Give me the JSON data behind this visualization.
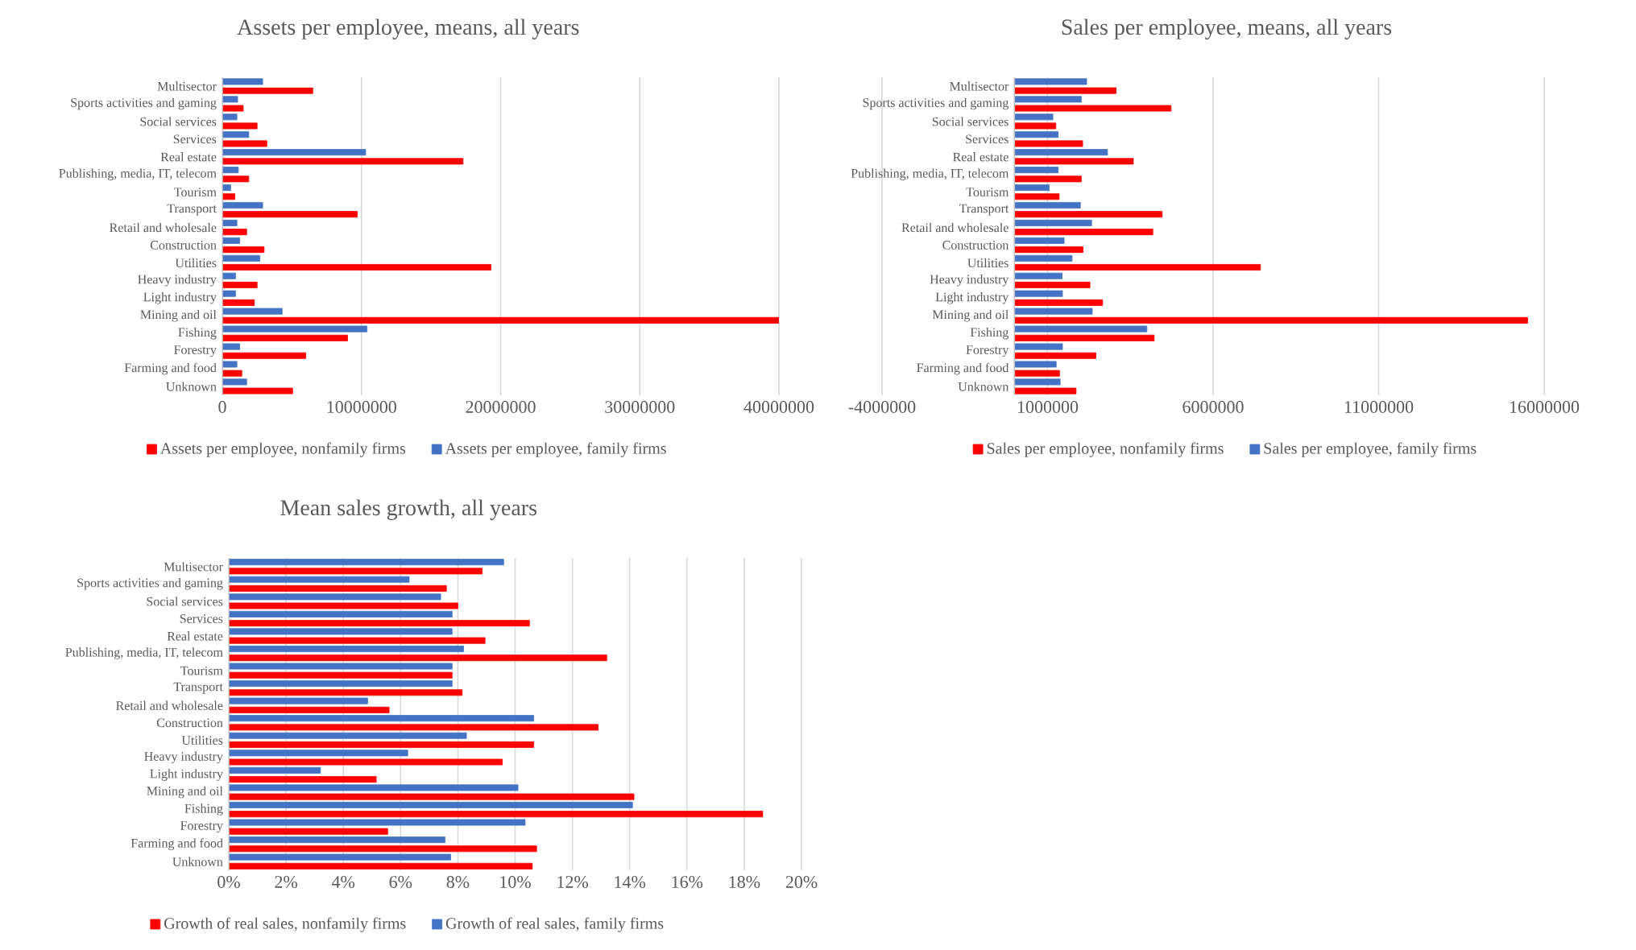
{
  "chart_data": [
    {
      "type": "bar",
      "orientation": "horizontal",
      "title": "Assets per employee, means, all years",
      "categories": [
        "Multisector",
        "Sports activities and gaming",
        "Social services",
        "Services",
        "Real estate",
        "Publishing, media, IT, telecom",
        "Tourism",
        "Transport",
        "Retail and wholesale",
        "Construction",
        "Utilities",
        "Heavy industry",
        "Light industry",
        "Mining and oil",
        "Fishing",
        "Forestry",
        "Farming and food",
        "Unknown"
      ],
      "series": [
        {
          "name": "Assets per employee, nonfamily firms",
          "color": "#ff0000",
          "values": [
            6500000,
            1500000,
            2500000,
            3200000,
            17300000,
            1900000,
            900000,
            9700000,
            1750000,
            3000000,
            19300000,
            2500000,
            2300000,
            40000000,
            9000000,
            6000000,
            1400000,
            5050000
          ]
        },
        {
          "name": "Assets per employee, family firms",
          "color": "#4472c4",
          "values": [
            2900000,
            1100000,
            1050000,
            1900000,
            10300000,
            1150000,
            600000,
            2900000,
            1050000,
            1250000,
            2700000,
            950000,
            950000,
            4300000,
            10400000,
            1250000,
            1050000,
            1750000
          ]
        }
      ],
      "xlim": [
        0,
        40000000
      ],
      "xticks": [
        0,
        10000000,
        20000000,
        30000000,
        40000000
      ],
      "grid": "x",
      "legend": "bottom"
    },
    {
      "type": "bar",
      "orientation": "horizontal",
      "title": "Sales per employee, means, all years",
      "categories": [
        "Multisector",
        "Sports activities and gaming",
        "Social services",
        "Services",
        "Real estate",
        "Publishing, media, IT, telecom",
        "Tourism",
        "Transport",
        "Retail and wholesale",
        "Construction",
        "Utilities",
        "Heavy industry",
        "Light industry",
        "Mining and oil",
        "Fishing",
        "Forestry",
        "Farming and food",
        "Unknown"
      ],
      "series": [
        {
          "name": "Sales per employee, nonfamily firms",
          "color": "#ff0000",
          "values": [
            3070000,
            4730000,
            1250000,
            2060000,
            3590000,
            2020000,
            1350000,
            4460000,
            4180000,
            2070000,
            7430000,
            2280000,
            2660000,
            15500000,
            4220000,
            2460000,
            1360000,
            1860000
          ]
        },
        {
          "name": "Sales per employee, family firms",
          "color": "#4472c4",
          "values": [
            2180000,
            2020000,
            1160000,
            1320000,
            2810000,
            1320000,
            1050000,
            1990000,
            2330000,
            1500000,
            1740000,
            1440000,
            1450000,
            2350000,
            4000000,
            1450000,
            1260000,
            1380000
          ]
        }
      ],
      "xlim": [
        -4000000,
        16000000
      ],
      "xticks": [
        -4000000,
        1000000,
        6000000,
        11000000,
        16000000
      ],
      "grid": "x",
      "legend": "bottom"
    },
    {
      "type": "bar",
      "orientation": "horizontal",
      "title": "Mean sales growth, all years",
      "categories": [
        "Multisector",
        "Sports activities and gaming",
        "Social services",
        "Services",
        "Real estate",
        "Publishing, media, IT, telecom",
        "Tourism",
        "Transport",
        "Retail and wholesale",
        "Construction",
        "Utilities",
        "Heavy industry",
        "Light industry",
        "Mining and oil",
        "Fishing",
        "Forestry",
        "Farming and food",
        "Unknown"
      ],
      "series": [
        {
          "name": "Growth of real sales, nonfamily firms",
          "color": "#ff0000",
          "values": [
            8.85,
            7.6,
            8.0,
            10.5,
            8.95,
            13.2,
            7.8,
            8.15,
            5.6,
            12.9,
            10.65,
            9.55,
            5.15,
            14.15,
            18.65,
            5.55,
            10.75,
            10.6
          ]
        },
        {
          "name": "Growth of real sales, family firms",
          "color": "#4472c4",
          "values": [
            9.6,
            6.3,
            7.4,
            7.8,
            7.8,
            8.2,
            7.8,
            7.8,
            4.85,
            10.65,
            8.3,
            6.25,
            3.2,
            10.1,
            14.1,
            10.35,
            7.55,
            7.75
          ]
        }
      ],
      "xlim": [
        0,
        20
      ],
      "xticks": [
        {
          "value": 0,
          "label": "0%"
        },
        {
          "value": 2,
          "label": "2%"
        },
        {
          "value": 4,
          "label": "4%"
        },
        {
          "value": 6,
          "label": "6%"
        },
        {
          "value": 8,
          "label": "8%"
        },
        {
          "value": 10,
          "label": "10%"
        },
        {
          "value": 12,
          "label": "12%"
        },
        {
          "value": 14,
          "label": "14%"
        },
        {
          "value": 16,
          "label": "16%"
        },
        {
          "value": 18,
          "label": "18%"
        },
        {
          "value": 20,
          "label": "20%"
        }
      ],
      "grid": "x",
      "legend": "bottom"
    }
  ]
}
